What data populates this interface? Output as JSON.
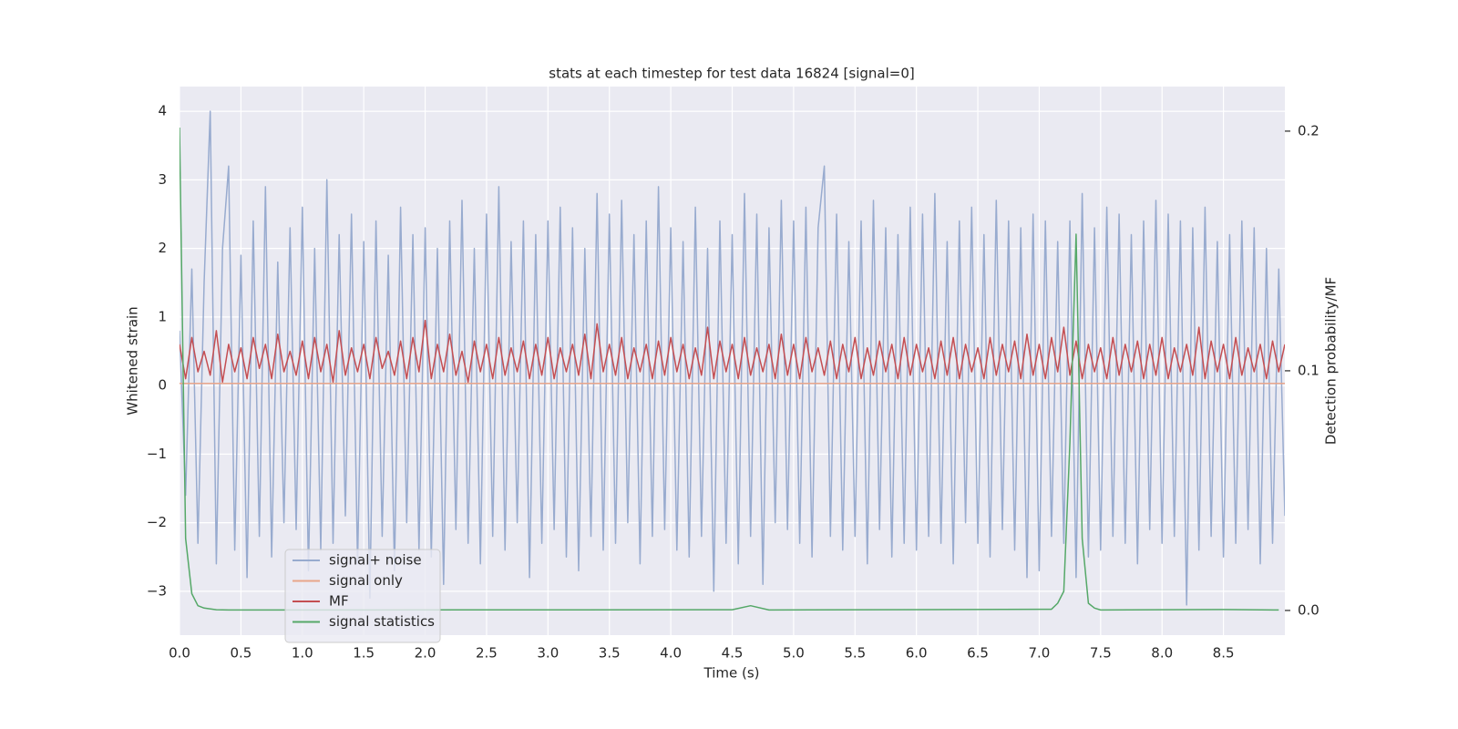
{
  "chart_data": {
    "type": "line",
    "title": "stats at each timestep for test data 16824 [signal=0]",
    "xlabel": "Time (s)",
    "ylabel": "Whitened strain",
    "y2label": "Detection probability/MF",
    "grid": true,
    "legend": "lower left",
    "xlim": [
      0,
      9.0
    ],
    "ylim": [
      -3.64,
      4.36
    ],
    "y2lim": [
      -0.0103,
      0.2186
    ],
    "xticks": [
      {
        "value": 0,
        "label": "0.0"
      },
      0.5,
      {
        "value": 1,
        "label": "1.0"
      },
      1.5,
      {
        "value": 2,
        "label": "2.0"
      },
      2.5,
      {
        "value": 3,
        "label": "3.0"
      },
      3.5,
      {
        "value": 4,
        "label": "4.0"
      },
      4.5,
      {
        "value": 5,
        "label": "5.0"
      },
      5.5,
      {
        "value": 6,
        "label": "6.0"
      },
      6.5,
      {
        "value": 7,
        "label": "7.0"
      },
      7.5,
      {
        "value": 8,
        "label": "8.0"
      },
      8.5
    ],
    "yticks": [
      {
        "value": -3,
        "label": "−3"
      },
      {
        "value": -2,
        "label": "−2"
      },
      {
        "value": -1,
        "label": "−1"
      },
      0,
      1,
      2,
      3,
      4
    ],
    "y2ticks": [
      {
        "value": 0,
        "label": "0.0"
      },
      0.1,
      0.2
    ],
    "x": [
      0,
      0.05,
      0.1,
      0.15,
      0.2,
      0.25,
      0.3,
      0.35,
      0.4,
      0.45,
      0.5,
      0.55,
      0.6,
      0.65,
      0.7,
      0.75,
      0.8,
      0.85,
      0.9,
      0.95,
      1,
      1.05,
      1.1,
      1.15,
      1.2,
      1.25,
      1.3,
      1.35,
      1.4,
      1.45,
      1.5,
      1.55,
      1.6,
      1.65,
      1.7,
      1.75,
      1.8,
      1.85,
      1.9,
      1.95,
      2,
      2.05,
      2.1,
      2.15,
      2.2,
      2.25,
      2.3,
      2.35,
      2.4,
      2.45,
      2.5,
      2.55,
      2.6,
      2.65,
      2.7,
      2.75,
      2.8,
      2.85,
      2.9,
      2.95,
      3,
      3.05,
      3.1,
      3.15,
      3.2,
      3.25,
      3.3,
      3.35,
      3.4,
      3.45,
      3.5,
      3.55,
      3.6,
      3.65,
      3.7,
      3.75,
      3.8,
      3.85,
      3.9,
      3.95,
      4,
      4.05,
      4.1,
      4.15,
      4.2,
      4.25,
      4.3,
      4.35,
      4.4,
      4.45,
      4.5,
      4.55,
      4.6,
      4.65,
      4.7,
      4.75,
      4.8,
      4.85,
      4.9,
      4.95,
      5,
      5.05,
      5.1,
      5.15,
      5.2,
      5.25,
      5.3,
      5.35,
      5.4,
      5.45,
      5.5,
      5.55,
      5.6,
      5.65,
      5.7,
      5.75,
      5.8,
      5.85,
      5.9,
      5.95,
      6,
      6.05,
      6.1,
      6.15,
      6.2,
      6.25,
      6.3,
      6.35,
      6.4,
      6.45,
      6.5,
      6.55,
      6.6,
      6.65,
      6.7,
      6.75,
      6.8,
      6.85,
      6.9,
      6.95,
      7,
      7.05,
      7.1,
      7.15,
      7.2,
      7.25,
      7.3,
      7.35,
      7.4,
      7.45,
      7.5,
      7.55,
      7.6,
      7.65,
      7.7,
      7.75,
      7.8,
      7.85,
      7.9,
      7.95,
      8,
      8.05,
      8.1,
      8.15,
      8.2,
      8.25,
      8.3,
      8.35,
      8.4,
      8.45,
      8.5,
      8.55,
      8.6,
      8.65,
      8.7,
      8.75,
      8.8,
      8.85,
      8.9,
      8.95,
      9.0
    ],
    "series": [
      {
        "name": "signal+ noise",
        "color": "#98abcf",
        "values": [
          0.8,
          -1.6,
          1.7,
          -2.3,
          1.5,
          4.0,
          -2.6,
          2.0,
          3.2,
          -2.4,
          1.9,
          -2.8,
          2.4,
          -2.2,
          2.9,
          -2.5,
          1.8,
          -2.0,
          2.3,
          -2.1,
          2.6,
          -2.7,
          2.0,
          -2.4,
          3.0,
          -2.3,
          2.2,
          -1.9,
          2.5,
          -2.6,
          2.1,
          -3.1,
          2.4,
          -2.2,
          1.9,
          -2.7,
          2.6,
          -2.0,
          2.2,
          -2.4,
          2.3,
          -2.5,
          2.0,
          -2.9,
          2.4,
          -2.1,
          2.7,
          -2.3,
          2.0,
          -2.6,
          2.5,
          -2.2,
          2.9,
          -2.4,
          2.1,
          -2.0,
          2.4,
          -2.8,
          2.2,
          -2.3,
          2.4,
          -2.1,
          2.6,
          -2.5,
          2.3,
          -2.7,
          2.0,
          -2.2,
          2.8,
          -2.4,
          2.5,
          -2.3,
          2.7,
          -2.0,
          2.2,
          -2.6,
          2.4,
          -2.2,
          2.9,
          -2.1,
          2.3,
          -2.4,
          2.1,
          -2.5,
          2.6,
          -2.2,
          2.0,
          -3.0,
          2.4,
          -2.3,
          2.2,
          -2.6,
          2.8,
          -2.2,
          2.5,
          -2.9,
          2.3,
          -2.0,
          2.7,
          -2.1,
          2.4,
          -2.3,
          2.6,
          -2.5,
          2.3,
          3.2,
          -2.2,
          2.5,
          -2.4,
          2.1,
          -2.2,
          2.4,
          -2.6,
          2.7,
          -2.1,
          2.3,
          -2.5,
          2.2,
          -2.3,
          2.6,
          -2.4,
          2.5,
          -2.2,
          2.8,
          -2.3,
          2.1,
          -2.6,
          2.4,
          -2.0,
          2.6,
          -2.3,
          2.2,
          -2.5,
          2.7,
          -2.1,
          2.4,
          -2.4,
          2.3,
          -2.8,
          2.5,
          -2.7,
          2.4,
          -2.2,
          2.1,
          -2.3,
          2.4,
          -2.8,
          2.8,
          -2.5,
          2.3,
          -2.4,
          2.6,
          -2.2,
          2.5,
          -2.3,
          2.2,
          -2.6,
          2.4,
          -2.1,
          2.7,
          -2.3,
          2.5,
          -2.2,
          2.4,
          -3.2,
          2.3,
          -2.4,
          2.6,
          -2.2,
          2.1,
          -2.5,
          2.2,
          -2.3,
          2.4,
          -2.1,
          2.3,
          -2.6,
          2.0,
          -2.3,
          1.7,
          -1.9
        ]
      },
      {
        "name": "signal only",
        "color": "#e8a58a",
        "x": [
          0,
          9.0
        ],
        "values": [
          0.03,
          0.03
        ]
      },
      {
        "name": "MF",
        "color": "#c44e52",
        "values": [
          0.6,
          0.1,
          0.7,
          0.2,
          0.5,
          0.15,
          0.8,
          0.05,
          0.6,
          0.2,
          0.55,
          0.1,
          0.7,
          0.25,
          0.6,
          0.1,
          0.75,
          0.2,
          0.5,
          0.15,
          0.65,
          0.1,
          0.7,
          0.2,
          0.6,
          0.05,
          0.8,
          0.15,
          0.55,
          0.2,
          0.6,
          0.1,
          0.7,
          0.25,
          0.5,
          0.15,
          0.65,
          0.1,
          0.7,
          0.2,
          0.95,
          0.1,
          0.6,
          0.2,
          0.75,
          0.15,
          0.5,
          0.05,
          0.65,
          0.2,
          0.6,
          0.1,
          0.7,
          0.15,
          0.55,
          0.2,
          0.65,
          0.1,
          0.6,
          0.15,
          0.7,
          0.1,
          0.55,
          0.2,
          0.6,
          0.15,
          0.75,
          0.1,
          0.9,
          0.2,
          0.6,
          0.15,
          0.7,
          0.1,
          0.55,
          0.2,
          0.6,
          0.1,
          0.65,
          0.15,
          0.7,
          0.2,
          0.6,
          0.1,
          0.55,
          0.15,
          0.85,
          0.1,
          0.65,
          0.2,
          0.6,
          0.1,
          0.7,
          0.15,
          0.55,
          0.2,
          0.6,
          0.1,
          0.75,
          0.15,
          0.6,
          0.1,
          0.7,
          0.2,
          0.55,
          0.15,
          0.65,
          0.1,
          0.6,
          0.2,
          0.7,
          0.1,
          0.55,
          0.15,
          0.65,
          0.2,
          0.6,
          0.1,
          0.7,
          0.15,
          0.6,
          0.2,
          0.55,
          0.1,
          0.65,
          0.15,
          0.7,
          0.1,
          0.6,
          0.2,
          0.55,
          0.1,
          0.7,
          0.15,
          0.6,
          0.2,
          0.65,
          0.1,
          0.75,
          0.15,
          0.6,
          0.1,
          0.7,
          0.2,
          0.85,
          0.15,
          0.65,
          0.1,
          0.6,
          0.2,
          0.55,
          0.1,
          0.7,
          0.15,
          0.6,
          0.2,
          0.65,
          0.1,
          0.6,
          0.15,
          0.7,
          0.1,
          0.55,
          0.2,
          0.6,
          0.15,
          0.85,
          0.1,
          0.65,
          0.2,
          0.6,
          0.1,
          0.7,
          0.15,
          0.55,
          0.2,
          0.6,
          0.1,
          0.65,
          0.2,
          0.6
        ]
      },
      {
        "name": "signal statistics",
        "color": "#55a868",
        "axis": "y2",
        "x": [
          0,
          0.05,
          0.1,
          0.15,
          0.2,
          0.3,
          0.4,
          4.5,
          4.65,
          4.8,
          7.1,
          7.15,
          7.2,
          7.25,
          7.3,
          7.35,
          7.4,
          7.45,
          7.5,
          8.5,
          8.95
        ],
        "values": [
          0.2015,
          0.03,
          0.007,
          0.002,
          0.001,
          0.0003,
          0.0002,
          0.0003,
          0.002,
          0.0002,
          0.0005,
          0.003,
          0.008,
          0.07,
          0.157,
          0.03,
          0.003,
          0.001,
          0.0002,
          0.0004,
          0.0002
        ]
      }
    ]
  }
}
